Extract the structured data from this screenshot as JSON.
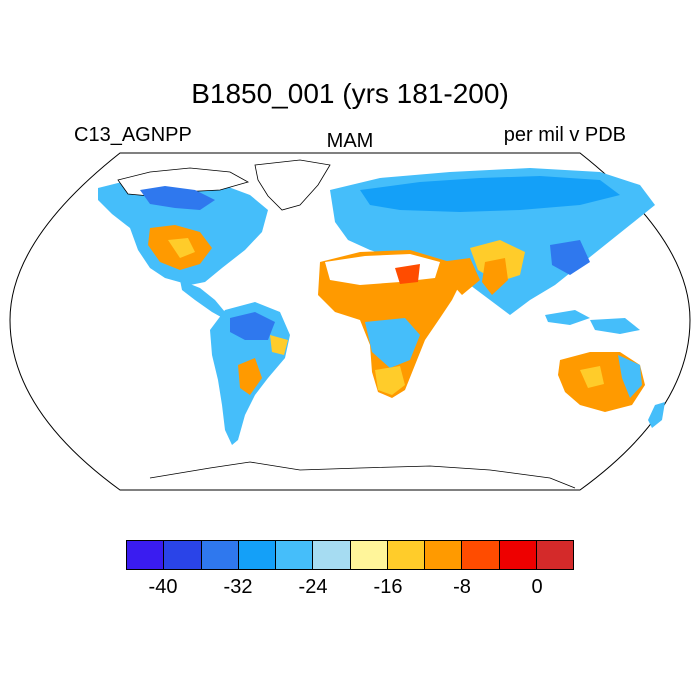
{
  "title": "B1850_001 (yrs 181-200)",
  "left_label": "C13_AGNPP",
  "center_label": "MAM",
  "right_label": "per mil v PDB",
  "colorbar": {
    "colors": [
      "#3a1cf0",
      "#2a44e8",
      "#2f78ee",
      "#14a0f8",
      "#45befa",
      "#a6dcf2",
      "#fff59a",
      "#ffcc2a",
      "#ff9a00",
      "#ff4c00",
      "#ee0000",
      "#d42a2a"
    ],
    "tick_labels": [
      "-40",
      "-32",
      "-24",
      "-16",
      "-8",
      "0"
    ]
  },
  "map": {
    "projection": "robinson",
    "variable": "C13_AGNPP",
    "season": "MAM",
    "units": "per mil v PDB",
    "color_levels": [
      -44,
      -40,
      -36,
      -32,
      -28,
      -24,
      -20,
      -16,
      -12,
      -8,
      -4,
      0,
      4
    ]
  }
}
